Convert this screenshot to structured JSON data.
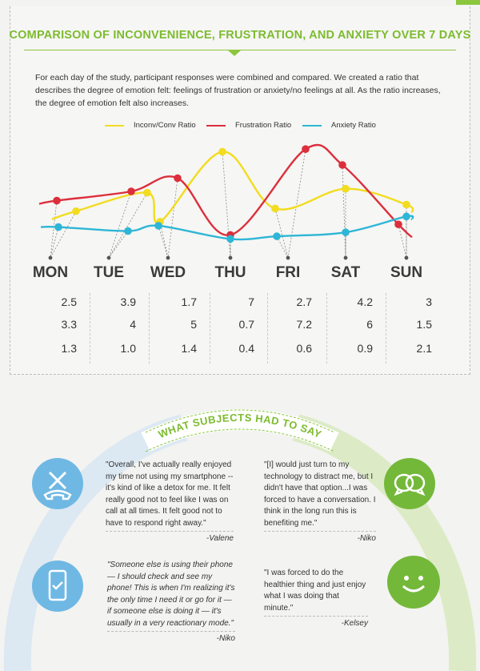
{
  "title": "COMPARISON OF INCONVENIENCE, FRUSTRATION, AND ANXIETY OVER 7 DAYS",
  "intro": "For each day of the study, participant responses were combined and compared. We created a ratio that describes the degree of emotion felt: feelings of frustration or anxiety/no feelings at all. As the ratio increases, the degree of emotion felt also increases.",
  "colors": {
    "inconv": "#f2dc1f",
    "frustration": "#dc2f3c",
    "anxiety": "#2eb6d6",
    "green": "#8cc63f",
    "blue_light": "#d8e6f0",
    "blue_icon": "#5aaee0"
  },
  "chart_data": {
    "type": "line",
    "categories": [
      "MON",
      "TUE",
      "WED",
      "THU",
      "FRI",
      "SAT",
      "SUN"
    ],
    "series": [
      {
        "name": "Inconv/Conv Ratio",
        "values": [
          2.5,
          3.9,
          1.7,
          7,
          2.7,
          4.2,
          3
        ]
      },
      {
        "name": "Frustration Ratio",
        "values": [
          3.3,
          4,
          5,
          0.7,
          7.2,
          6,
          1.5
        ]
      },
      {
        "name": "Anxiety Ratio",
        "values": [
          1.3,
          1.0,
          1.4,
          0.4,
          0.6,
          0.9,
          2.1
        ]
      }
    ],
    "legend": "top-center"
  },
  "table": {
    "days": [
      "MON",
      "TUE",
      "WED",
      "THU",
      "FRI",
      "SAT",
      "SUN"
    ],
    "inconv": [
      "2.5",
      "3.9",
      "1.7",
      "7",
      "2.7",
      "4.2",
      "3"
    ],
    "frustration": [
      "3.3",
      "4",
      "5",
      "0.7",
      "7.2",
      "6",
      "1.5"
    ],
    "anxiety": [
      "1.3",
      "1.0",
      "1.4",
      "0.4",
      "0.6",
      "0.9",
      "2.1"
    ]
  },
  "section2": {
    "heading": "WHAT SUBJECTS HAD TO SAY",
    "quotes": [
      {
        "text": "\"Overall, I've actually really enjoyed my time not using my smartphone -- it's kind of like a detox for me. It felt really good not to feel like I was on call at all times. It felt good not to have to respond right away.\"",
        "author": "-Valene"
      },
      {
        "text": "\"[I] would just turn to my technology to distract me, but I didn't have that option...I was forced to have a conversation. I think in the long run this is benefiting me.\"",
        "author": "-Niko"
      },
      {
        "text": "\"Someone else is using their phone — I should check and see my phone! This is when I'm realizing it's the only time I need it or go for it — if someone else is doing it — it's usually in a very reactionary mode.\"",
        "author": "-Niko"
      },
      {
        "text": "\"I was forced to do the healthier thing and just enjoy what I was doing that minute.\"",
        "author": "-Kelsey"
      }
    ],
    "icons": [
      "phone-off-icon",
      "chat-bubbles-icon",
      "phone-check-icon",
      "smiley-icon"
    ]
  }
}
